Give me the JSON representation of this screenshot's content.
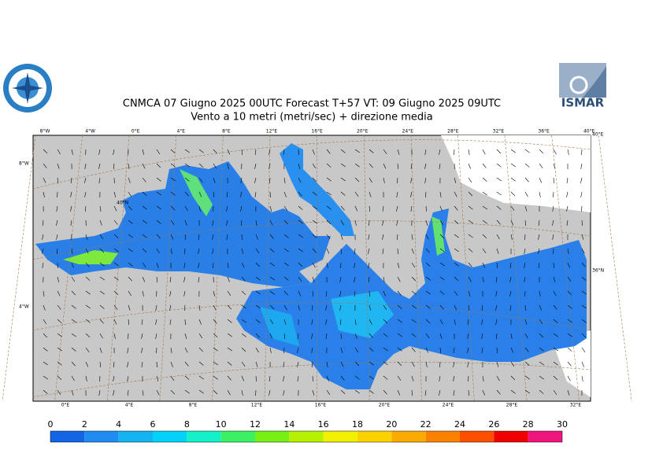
{
  "header": {
    "title": "CNMCA 07   Giugno  2025 00UTC Forecast T+57 VT: 09   Giugno  2025 09UTC",
    "subtitle": "Vento a 10 metri (metri/sec) + direzione media",
    "logo_text": "ISMAR"
  },
  "map": {
    "top_labels": [
      "8°W",
      "4°W",
      "0°E",
      "4°E",
      "8°E",
      "12°E",
      "16°E",
      "20°E",
      "24°E",
      "28°E",
      "32°E",
      "36°E",
      "40°E"
    ],
    "bottom_labels": [
      "0°E",
      "4°E",
      "8°E",
      "12°E",
      "16°E",
      "20°E",
      "24°E",
      "28°E",
      "32°E"
    ],
    "left_labels": [
      "8°W",
      "40°N",
      "4°W"
    ],
    "right_labels": [
      "40°E",
      "36°N"
    ]
  },
  "colorbar": {
    "ticks": [
      0,
      2,
      4,
      6,
      8,
      10,
      12,
      14,
      16,
      18,
      20,
      22,
      24,
      26,
      28,
      30
    ],
    "colors": [
      "#1464e6",
      "#1e8cf0",
      "#14b4f0",
      "#00d2fa",
      "#14f0c8",
      "#3cf064",
      "#78f014",
      "#b4f000",
      "#f0f000",
      "#fad200",
      "#faaa00",
      "#fa8200",
      "#fa5000",
      "#f00000",
      "#f0147d"
    ]
  }
}
